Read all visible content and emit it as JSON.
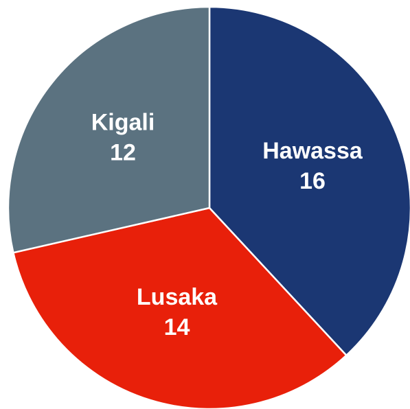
{
  "chart_data": {
    "type": "pie",
    "categories": [
      "Hawassa",
      "Lusaka",
      "Kigali"
    ],
    "values": [
      16,
      14,
      12
    ],
    "colors": [
      "#1b3773",
      "#e8200a",
      "#5b7280"
    ]
  }
}
